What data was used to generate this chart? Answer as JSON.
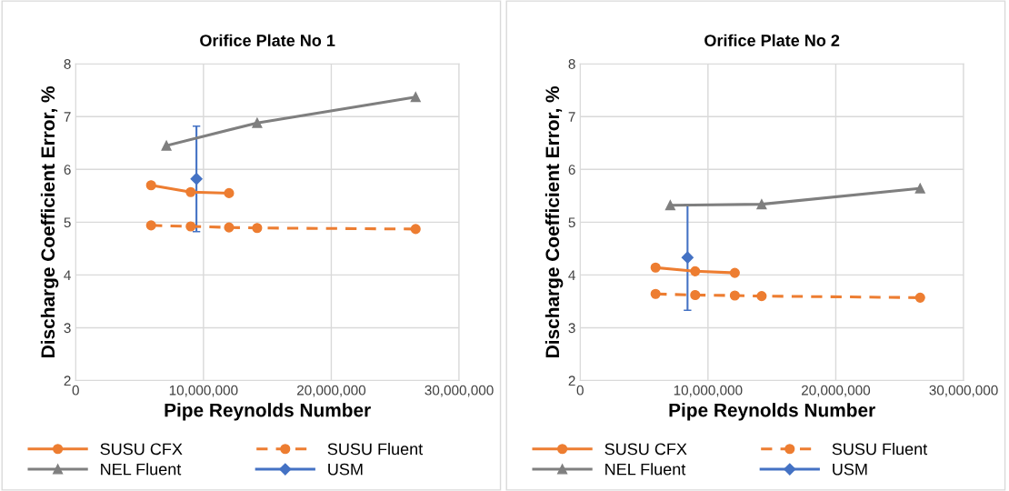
{
  "chart_data": [
    {
      "type": "line",
      "title": "Orifice Plate No 1",
      "xlabel": "Pipe Reynolds Number",
      "ylabel": "Discharge Coefficient Error, %",
      "xlim": [
        0,
        30000000
      ],
      "xticks": [
        {
          "value": 0,
          "label": "0"
        },
        {
          "value": 10000000,
          "label": "10,000,000"
        },
        {
          "value": 20000000,
          "label": "20,000,000"
        },
        {
          "value": 30000000,
          "label": "30,000,000"
        }
      ],
      "ylim": [
        2,
        8
      ],
      "yticks": [
        2,
        3,
        4,
        5,
        6,
        7,
        8
      ],
      "grid": true,
      "legend": "bottom",
      "series": [
        {
          "name": "SUSU CFX",
          "color": "#ed7d31",
          "marker": "circle",
          "line_style": "solid",
          "x": [
            5900000,
            9000000,
            12000000
          ],
          "values": [
            5.7,
            5.57,
            5.55
          ]
        },
        {
          "name": "SUSU Fluent",
          "color": "#ed7d31",
          "marker": "circle",
          "line_style": "dashed",
          "x": [
            5900000,
            9000000,
            12000000,
            14200000,
            26600000
          ],
          "values": [
            4.94,
            4.92,
            4.9,
            4.89,
            4.87
          ]
        },
        {
          "name": "NEL Fluent",
          "color": "#7f7f7f",
          "marker": "triangle",
          "line_style": "solid",
          "x": [
            7100000,
            14200000,
            26600000
          ],
          "values": [
            6.45,
            6.88,
            7.37
          ]
        },
        {
          "name": "USM",
          "color": "#4472c4",
          "marker": "diamond",
          "line_style": "solid",
          "x": [
            9450000
          ],
          "values": [
            5.82
          ],
          "errors": [
            1
          ]
        }
      ]
    },
    {
      "type": "line",
      "title": "Orifice Plate No 2",
      "xlabel": "Pipe Reynolds Number",
      "ylabel": "Discharge Coefficient Error, %",
      "xlim": [
        0,
        30000000
      ],
      "xticks": [
        {
          "value": 0,
          "label": "0"
        },
        {
          "value": 10000000,
          "label": "10,000,000"
        },
        {
          "value": 20000000,
          "label": "20,000,000"
        },
        {
          "value": 30000000,
          "label": "30,000,000"
        }
      ],
      "ylim": [
        2,
        8
      ],
      "yticks": [
        2,
        3,
        4,
        5,
        6,
        7,
        8
      ],
      "grid": true,
      "legend": "bottom",
      "series": [
        {
          "name": "SUSU CFX",
          "color": "#ed7d31",
          "marker": "circle",
          "line_style": "solid",
          "x": [
            5900000,
            9000000,
            12100000
          ],
          "values": [
            4.14,
            4.07,
            4.04
          ]
        },
        {
          "name": "SUSU Fluent",
          "color": "#ed7d31",
          "marker": "circle",
          "line_style": "dashed",
          "x": [
            5900000,
            9000000,
            12100000,
            14200000,
            26600000
          ],
          "values": [
            3.64,
            3.62,
            3.61,
            3.6,
            3.57
          ]
        },
        {
          "name": "NEL Fluent",
          "color": "#7f7f7f",
          "marker": "triangle",
          "line_style": "solid",
          "x": [
            7050000,
            14200000,
            26600000
          ],
          "values": [
            5.32,
            5.34,
            5.64
          ]
        },
        {
          "name": "USM",
          "color": "#4472c4",
          "marker": "diamond",
          "line_style": "solid",
          "x": [
            8400000
          ],
          "values": [
            4.33
          ],
          "errors": [
            1
          ]
        }
      ]
    }
  ]
}
